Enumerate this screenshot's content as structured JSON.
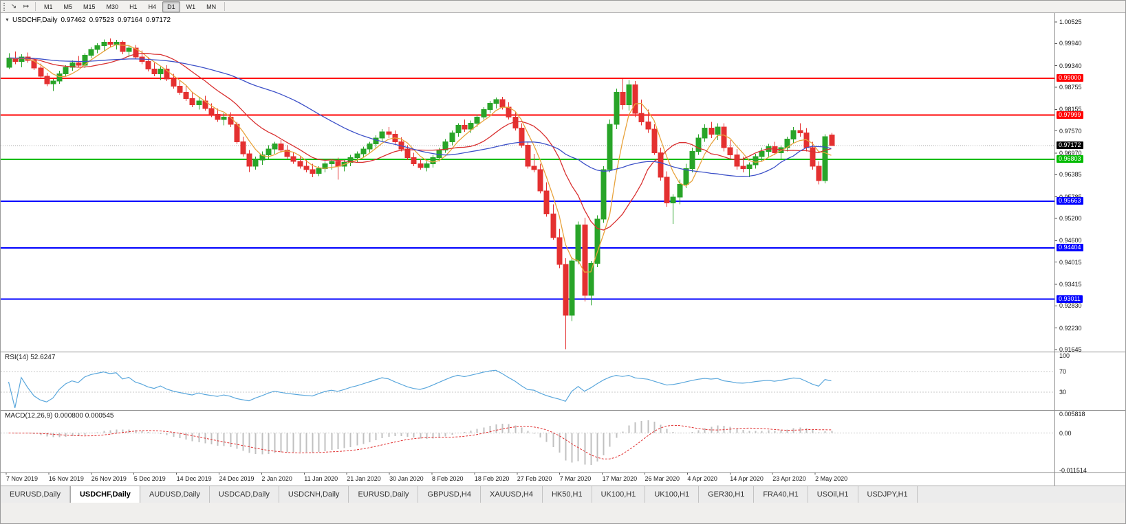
{
  "toolbar": {
    "icons": [
      {
        "name": "auto-scroll-icon",
        "glyph": "↘"
      },
      {
        "name": "chart-shift-icon",
        "glyph": "↦"
      }
    ],
    "timeframes": [
      "M1",
      "M5",
      "M15",
      "M30",
      "H1",
      "H4",
      "D1",
      "W1",
      "MN"
    ],
    "active_timeframe": "D1"
  },
  "chart_header": {
    "collapse_glyph": "▼",
    "symbol": "USDCHF,Daily",
    "open": "0.97462",
    "high": "0.97523",
    "low": "0.97164",
    "close": "0.97172"
  },
  "rsi": {
    "label": "RSI(14) 52.6247",
    "value": "52.6247",
    "period": 14,
    "color": "#5aa7dc",
    "levels": [
      70,
      30
    ],
    "axis": [
      {
        "text": "100",
        "value": 100
      },
      {
        "text": "70",
        "value": 70
      },
      {
        "text": "30",
        "value": 30
      }
    ]
  },
  "macd": {
    "label": "MACD(12,26,9) 0.000800 0.000545",
    "macd_value": "0.000800",
    "signal_value": "0.000545",
    "hist_color": "#c0c0c0",
    "signal_color": "#e03030",
    "axis": [
      {
        "text": "0.005818",
        "value": 0.005818
      },
      {
        "text": "0.00",
        "value": 0
      },
      {
        "text": "-0.011514",
        "value": -0.011514
      }
    ]
  },
  "tabs": {
    "items": [
      "EURUSD,Daily",
      "USDCHF,Daily",
      "AUDUSD,Daily",
      "USDCAD,Daily",
      "USDCNH,Daily",
      "EURUSD,Daily",
      "GBPUSD,H4",
      "XAUUSD,H4",
      "HK50,H1",
      "UK100,H1",
      "UK100,H1",
      "GER30,H1",
      "FRA40,H1",
      "USOil,H1",
      "USDJPY,H1"
    ],
    "active_index": 1
  },
  "chart_data": {
    "type": "candlestick",
    "title": "USDCHF,Daily",
    "symbol": "USDCHF",
    "timeframe": "Daily",
    "up_color": "#28a428",
    "down_color": "#e43030",
    "price_axis_ticks": [
      "1.00525",
      "0.99940",
      "0.99340",
      "0.98755",
      "0.98155",
      "0.97570",
      "0.96970",
      "0.96385",
      "0.95785",
      "0.95200",
      "0.94600",
      "0.94015",
      "0.93415",
      "0.92830",
      "0.92230",
      "0.91645"
    ],
    "x_labels": [
      "7 Nov 2019",
      "16 Nov 2019",
      "26 Nov 2019",
      "5 Dec 2019",
      "14 Dec 2019",
      "24 Dec 2019",
      "2 Jan 2020",
      "11 Jan 2020",
      "21 Jan 2020",
      "30 Jan 2020",
      "8 Feb 2020",
      "18 Feb 2020",
      "27 Feb 2020",
      "7 Mar 2020",
      "17 Mar 2020",
      "26 Mar 2020",
      "4 Apr 2020",
      "14 Apr 2020",
      "23 Apr 2020",
      "2 May 2020"
    ],
    "levels": [
      {
        "price": 0.99,
        "label": "0.99000",
        "color": "#ff0000"
      },
      {
        "price": 0.97999,
        "label": "0.97999",
        "color": "#ff0000"
      },
      {
        "price": 0.96803,
        "label": "0.96803",
        "color": "#00bb00"
      },
      {
        "price": 0.95663,
        "label": "0.95663",
        "color": "#0000ff"
      },
      {
        "price": 0.94404,
        "label": "0.94404",
        "color": "#0000ff"
      },
      {
        "price": 0.93011,
        "label": "0.93011",
        "color": "#0000ff"
      }
    ],
    "current_price": {
      "label": "0.97172",
      "price": 0.97172,
      "bg": "#000000"
    },
    "moving_averages": [
      {
        "type": "sma",
        "period": 5,
        "color": "#e8a33c"
      },
      {
        "type": "sma",
        "period": 13,
        "color": "#d93030"
      },
      {
        "type": "sma",
        "period": 34,
        "color": "#3c50c8"
      }
    ],
    "price_range": [
      0.91645,
      1.00525
    ],
    "candles": [
      [
        0.993,
        0.9968,
        0.9925,
        0.9955
      ],
      [
        0.9955,
        0.9972,
        0.9938,
        0.9945
      ],
      [
        0.9945,
        0.9965,
        0.993,
        0.9958
      ],
      [
        0.9958,
        0.997,
        0.9942,
        0.9948
      ],
      [
        0.9948,
        0.9955,
        0.9922,
        0.9928
      ],
      [
        0.9928,
        0.994,
        0.99,
        0.9905
      ],
      [
        0.9905,
        0.9915,
        0.9878,
        0.9885
      ],
      [
        0.9885,
        0.9898,
        0.9865,
        0.9892
      ],
      [
        0.9892,
        0.992,
        0.9885,
        0.9912
      ],
      [
        0.9912,
        0.9935,
        0.9905,
        0.993
      ],
      [
        0.993,
        0.9948,
        0.992,
        0.9942
      ],
      [
        0.9942,
        0.996,
        0.993,
        0.9935
      ],
      [
        0.9935,
        0.9968,
        0.9928,
        0.9962
      ],
      [
        0.9962,
        0.9985,
        0.9955,
        0.9978
      ],
      [
        0.9978,
        0.9995,
        0.9968,
        0.9988
      ],
      [
        0.9988,
        1.0005,
        0.9975,
        0.9998
      ],
      [
        0.9998,
        1.0008,
        0.9985,
        0.9992
      ],
      [
        0.9992,
        1.0004,
        0.9978,
        0.9998
      ],
      [
        0.9998,
        1.0002,
        0.9965,
        0.9972
      ],
      [
        0.9972,
        0.9988,
        0.9958,
        0.9982
      ],
      [
        0.9982,
        0.999,
        0.9952,
        0.9958
      ],
      [
        0.9958,
        0.9975,
        0.9938,
        0.9945
      ],
      [
        0.9945,
        0.9958,
        0.9918,
        0.9925
      ],
      [
        0.9925,
        0.9942,
        0.9905,
        0.9912
      ],
      [
        0.9912,
        0.9932,
        0.9895,
        0.9925
      ],
      [
        0.9925,
        0.9935,
        0.9892,
        0.9898
      ],
      [
        0.9898,
        0.9912,
        0.9872,
        0.9878
      ],
      [
        0.9878,
        0.9895,
        0.9855,
        0.9862
      ],
      [
        0.9862,
        0.988,
        0.9838,
        0.9845
      ],
      [
        0.9845,
        0.9862,
        0.9822,
        0.9828
      ],
      [
        0.9828,
        0.9848,
        0.9815,
        0.9838
      ],
      [
        0.9838,
        0.9852,
        0.9812,
        0.9818
      ],
      [
        0.9818,
        0.9832,
        0.9795,
        0.9802
      ],
      [
        0.9802,
        0.9818,
        0.9782,
        0.9788
      ],
      [
        0.9788,
        0.9805,
        0.9772,
        0.9795
      ],
      [
        0.9795,
        0.9808,
        0.9768,
        0.9775
      ],
      [
        0.9775,
        0.9782,
        0.9722,
        0.9728
      ],
      [
        0.9728,
        0.9742,
        0.9688,
        0.9695
      ],
      [
        0.9695,
        0.9705,
        0.9646,
        0.9662
      ],
      [
        0.9662,
        0.9688,
        0.9652,
        0.9678
      ],
      [
        0.9678,
        0.9702,
        0.9665,
        0.9692
      ],
      [
        0.9692,
        0.9718,
        0.9682,
        0.9708
      ],
      [
        0.9708,
        0.9728,
        0.9695,
        0.9722
      ],
      [
        0.9722,
        0.9732,
        0.9698,
        0.9705
      ],
      [
        0.9705,
        0.9718,
        0.9682,
        0.9688
      ],
      [
        0.9688,
        0.97,
        0.9668,
        0.9675
      ],
      [
        0.9675,
        0.9688,
        0.9655,
        0.9662
      ],
      [
        0.9662,
        0.9678,
        0.9645,
        0.9652
      ],
      [
        0.9652,
        0.9668,
        0.9632,
        0.9642
      ],
      [
        0.9642,
        0.9662,
        0.9635,
        0.9655
      ],
      [
        0.9655,
        0.9675,
        0.9645,
        0.9668
      ],
      [
        0.9668,
        0.9682,
        0.9652,
        0.9675
      ],
      [
        0.9675,
        0.9685,
        0.9625,
        0.9662
      ],
      [
        0.9662,
        0.968,
        0.9648,
        0.9672
      ],
      [
        0.9672,
        0.9692,
        0.9662,
        0.9685
      ],
      [
        0.9685,
        0.9702,
        0.9672,
        0.9695
      ],
      [
        0.9695,
        0.9715,
        0.9685,
        0.9708
      ],
      [
        0.9708,
        0.9728,
        0.9698,
        0.9722
      ],
      [
        0.9722,
        0.9745,
        0.9712,
        0.9738
      ],
      [
        0.9738,
        0.9762,
        0.9728,
        0.9755
      ],
      [
        0.9755,
        0.9768,
        0.9738,
        0.9748
      ],
      [
        0.9748,
        0.9758,
        0.9722,
        0.9728
      ],
      [
        0.9728,
        0.974,
        0.9702,
        0.9708
      ],
      [
        0.9708,
        0.9718,
        0.9678,
        0.9685
      ],
      [
        0.9685,
        0.9698,
        0.9662,
        0.9668
      ],
      [
        0.9668,
        0.9682,
        0.9652,
        0.9658
      ],
      [
        0.9658,
        0.9675,
        0.9648,
        0.9668
      ],
      [
        0.9668,
        0.9692,
        0.9658,
        0.9685
      ],
      [
        0.9685,
        0.9712,
        0.9675,
        0.9705
      ],
      [
        0.9705,
        0.9735,
        0.9698,
        0.9728
      ],
      [
        0.9728,
        0.9758,
        0.9718,
        0.9752
      ],
      [
        0.9752,
        0.9778,
        0.9742,
        0.9772
      ],
      [
        0.9772,
        0.9788,
        0.9755,
        0.9762
      ],
      [
        0.9762,
        0.9785,
        0.9752,
        0.9778
      ],
      [
        0.9778,
        0.9802,
        0.9768,
        0.9795
      ],
      [
        0.9795,
        0.9822,
        0.9788,
        0.9815
      ],
      [
        0.9815,
        0.9838,
        0.9805,
        0.9832
      ],
      [
        0.9832,
        0.9848,
        0.9818,
        0.9842
      ],
      [
        0.9842,
        0.985,
        0.9815,
        0.9822
      ],
      [
        0.9822,
        0.9835,
        0.9788,
        0.9795
      ],
      [
        0.9795,
        0.9808,
        0.9758,
        0.9765
      ],
      [
        0.9765,
        0.9778,
        0.9712,
        0.9718
      ],
      [
        0.9718,
        0.9728,
        0.9655,
        0.9662
      ],
      [
        0.9662,
        0.9695,
        0.9645,
        0.9652
      ],
      [
        0.9652,
        0.9668,
        0.9588,
        0.9595
      ],
      [
        0.9595,
        0.9618,
        0.9525,
        0.9532
      ],
      [
        0.9532,
        0.9558,
        0.9462,
        0.9468
      ],
      [
        0.9468,
        0.9492,
        0.9385,
        0.9395
      ],
      [
        0.9395,
        0.9412,
        0.9165,
        0.9258
      ],
      [
        0.9258,
        0.9415,
        0.9242,
        0.9405
      ],
      [
        0.9405,
        0.9512,
        0.9395,
        0.9502
      ],
      [
        0.9502,
        0.9522,
        0.9295,
        0.9312
      ],
      [
        0.9312,
        0.9405,
        0.9285,
        0.9398
      ],
      [
        0.9398,
        0.9528,
        0.9388,
        0.9518
      ],
      [
        0.9518,
        0.9662,
        0.9508,
        0.9652
      ],
      [
        0.9652,
        0.9788,
        0.9645,
        0.9775
      ],
      [
        0.9775,
        0.9872,
        0.9762,
        0.9862
      ],
      [
        0.9862,
        0.9898,
        0.9815,
        0.9828
      ],
      [
        0.9828,
        0.9895,
        0.9812,
        0.9882
      ],
      [
        0.9882,
        0.9892,
        0.9795,
        0.9805
      ],
      [
        0.9805,
        0.9842,
        0.9772,
        0.9782
      ],
      [
        0.9782,
        0.9815,
        0.9752,
        0.9762
      ],
      [
        0.9762,
        0.9775,
        0.9692,
        0.9698
      ],
      [
        0.9698,
        0.9712,
        0.9622,
        0.9632
      ],
      [
        0.9632,
        0.9648,
        0.9552,
        0.9562
      ],
      [
        0.9562,
        0.9585,
        0.9505,
        0.9578
      ],
      [
        0.9578,
        0.9625,
        0.9558,
        0.9612
      ],
      [
        0.9612,
        0.9668,
        0.9602,
        0.9655
      ],
      [
        0.9655,
        0.9712,
        0.9645,
        0.9702
      ],
      [
        0.9702,
        0.9748,
        0.9692,
        0.9738
      ],
      [
        0.9738,
        0.9775,
        0.9728,
        0.9765
      ],
      [
        0.9765,
        0.9782,
        0.9738,
        0.9748
      ],
      [
        0.9748,
        0.9778,
        0.9732,
        0.9768
      ],
      [
        0.9768,
        0.9778,
        0.9702,
        0.9712
      ],
      [
        0.9712,
        0.9732,
        0.9682,
        0.9692
      ],
      [
        0.9692,
        0.9708,
        0.9652,
        0.9662
      ],
      [
        0.9662,
        0.9688,
        0.9645,
        0.9655
      ],
      [
        0.9655,
        0.9672,
        0.9632,
        0.9665
      ],
      [
        0.9665,
        0.9695,
        0.9655,
        0.9688
      ],
      [
        0.9688,
        0.9712,
        0.9675,
        0.9702
      ],
      [
        0.9702,
        0.9722,
        0.9688,
        0.9715
      ],
      [
        0.9715,
        0.9728,
        0.9692,
        0.9698
      ],
      [
        0.9698,
        0.9718,
        0.9682,
        0.9712
      ],
      [
        0.9712,
        0.9742,
        0.9702,
        0.9735
      ],
      [
        0.9735,
        0.9768,
        0.9725,
        0.9758
      ],
      [
        0.9758,
        0.9778,
        0.9742,
        0.9752
      ],
      [
        0.9752,
        0.9765,
        0.9702,
        0.9712
      ],
      [
        0.9712,
        0.9728,
        0.9652,
        0.9662
      ],
      [
        0.9662,
        0.9675,
        0.9612,
        0.9622
      ],
      [
        0.9622,
        0.9748,
        0.9615,
        0.9742
      ],
      [
        0.97462,
        0.97523,
        0.97164,
        0.97172
      ]
    ]
  }
}
